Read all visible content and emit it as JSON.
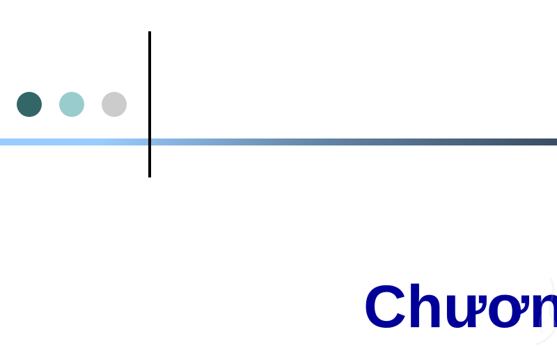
{
  "slide": {
    "title": "Chươn",
    "colors": {
      "dot_1": "#336666",
      "dot_2": "#99cccc",
      "dot_3": "#cccccc",
      "bar_start": "#99ccff",
      "bar_end": "#3a4d63",
      "vertical_line": "#000000",
      "title_text": "#000099"
    },
    "decorations": [
      "three-dots",
      "gradient-bar",
      "vertical-line",
      "watermark"
    ]
  }
}
